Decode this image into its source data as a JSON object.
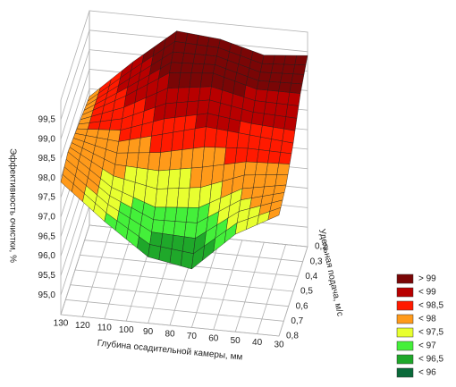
{
  "chart_data": {
    "type": "surface3d",
    "zlabel": "Эффективность очистки, %",
    "xlabel": "Глубина осадительной камеры, мм",
    "ylabel": "Удельная подача, м/с",
    "x": [
      130,
      110,
      90,
      70,
      50,
      30
    ],
    "y": [
      {
        "value": 0.2,
        "label": "0,2"
      },
      {
        "value": 0.35,
        "label": "0,35"
      },
      {
        "value": 0.5,
        "label": "0,5"
      },
      {
        "value": 0.65,
        "label": "0,65"
      },
      {
        "value": 0.8,
        "label": "0,8"
      }
    ],
    "z": [
      [
        97.8,
        98.8,
        99.7,
        99.6,
        99.3,
        99.4
      ],
      [
        97.9,
        98.5,
        99.2,
        99.3,
        99.0,
        99.0
      ],
      [
        98.0,
        97.9,
        98.2,
        98.5,
        98.4,
        98.3
      ],
      [
        98.1,
        97.3,
        96.9,
        97.0,
        97.6,
        97.8
      ],
      [
        97.9,
        97.0,
        96.2,
        96.0,
        97.0,
        97.6
      ]
    ],
    "xlim": [
      30,
      130
    ],
    "xticks": [
      130,
      120,
      110,
      100,
      90,
      80,
      70,
      60,
      50,
      40,
      30
    ],
    "ylim": [
      0.2,
      0.8
    ],
    "yticks": [
      {
        "value": 0.2,
        "label": "0,2"
      },
      {
        "value": 0.3,
        "label": "0,3"
      },
      {
        "value": 0.4,
        "label": "0,4"
      },
      {
        "value": 0.5,
        "label": "0,5"
      },
      {
        "value": 0.6,
        "label": "0,6"
      },
      {
        "value": 0.7,
        "label": "0,7"
      },
      {
        "value": 0.8,
        "label": "0,8"
      }
    ],
    "zlim": [
      94.5,
      100
    ],
    "zticks": [
      {
        "value": 95,
        "label": "95,0"
      },
      {
        "value": 95.5,
        "label": "95,5"
      },
      {
        "value": 96,
        "label": "96,0"
      },
      {
        "value": 96.5,
        "label": "96,5"
      },
      {
        "value": 97,
        "label": "97,0"
      },
      {
        "value": 97.5,
        "label": "97,5"
      },
      {
        "value": 98,
        "label": "98,0"
      },
      {
        "value": 98.5,
        "label": "98,5"
      },
      {
        "value": 99,
        "label": "99,0"
      },
      {
        "value": 99.5,
        "label": "99,5"
      }
    ],
    "legend": [
      {
        "value": 99,
        "label": "> 99",
        "color": "#7a0606"
      },
      {
        "value": 99,
        "label": "< 99",
        "color": "#b80000"
      },
      {
        "value": 98.5,
        "label": "< 98,5",
        "color": "#ff1a00"
      },
      {
        "value": 98,
        "label": "< 98",
        "color": "#ff9a1a"
      },
      {
        "value": 97.5,
        "label": "< 97,5",
        "color": "#e8ff30"
      },
      {
        "value": 97,
        "label": "< 97",
        "color": "#44f03a"
      },
      {
        "value": 96.5,
        "label": "< 96,5",
        "color": "#1fa82a"
      },
      {
        "value": 96,
        "label": "< 96",
        "color": "#0a6a3a"
      }
    ]
  }
}
